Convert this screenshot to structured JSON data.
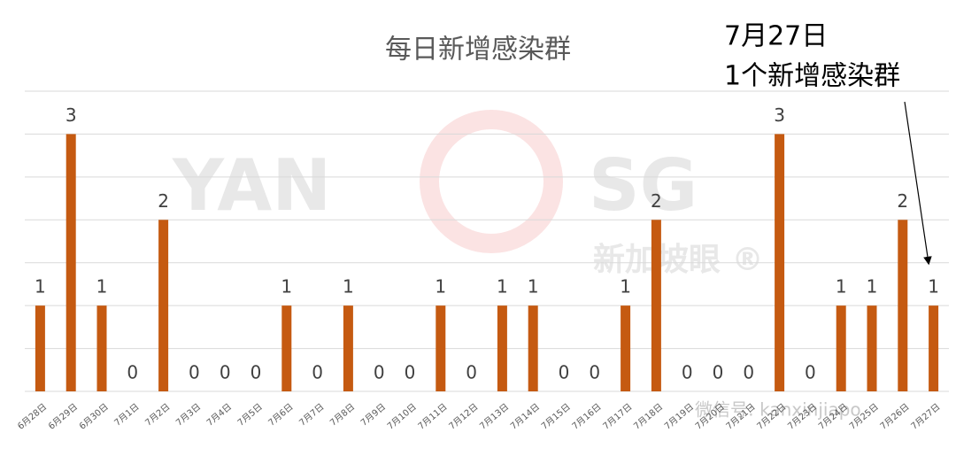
{
  "chart_data": {
    "type": "bar",
    "title": "每日新增感染群",
    "categories": [
      "6月28日",
      "6月29日",
      "6月30日",
      "7月1日",
      "7月2日",
      "7月3日",
      "7月4日",
      "7月5日",
      "7月6日",
      "7月7日",
      "7月8日",
      "7月9日",
      "7月10日",
      "7月11日",
      "7月12日",
      "7月13日",
      "7月14日",
      "7月15日",
      "7月16日",
      "7月17日",
      "7月18日",
      "7月19日",
      "7月20日",
      "7月21日",
      "7月22日",
      "7月23日",
      "7月24日",
      "7月25日",
      "7月26日",
      "7月27日"
    ],
    "values": [
      1,
      3,
      1,
      0,
      2,
      0,
      0,
      0,
      1,
      0,
      1,
      0,
      0,
      1,
      0,
      1,
      1,
      0,
      0,
      1,
      2,
      0,
      0,
      0,
      3,
      0,
      1,
      1,
      2,
      1
    ],
    "color": "#c55a11",
    "ylim": [
      0,
      3.5
    ],
    "yticks": [
      0,
      0.5,
      1,
      1.5,
      2,
      2.5,
      3,
      3.5
    ],
    "grid": true,
    "annotations": [
      "7月27日",
      "1个新增感染群"
    ],
    "watermarks": [
      "YAN",
      "SG",
      "新加坡眼 ®",
      "微信号: kanxinjiapo"
    ]
  }
}
